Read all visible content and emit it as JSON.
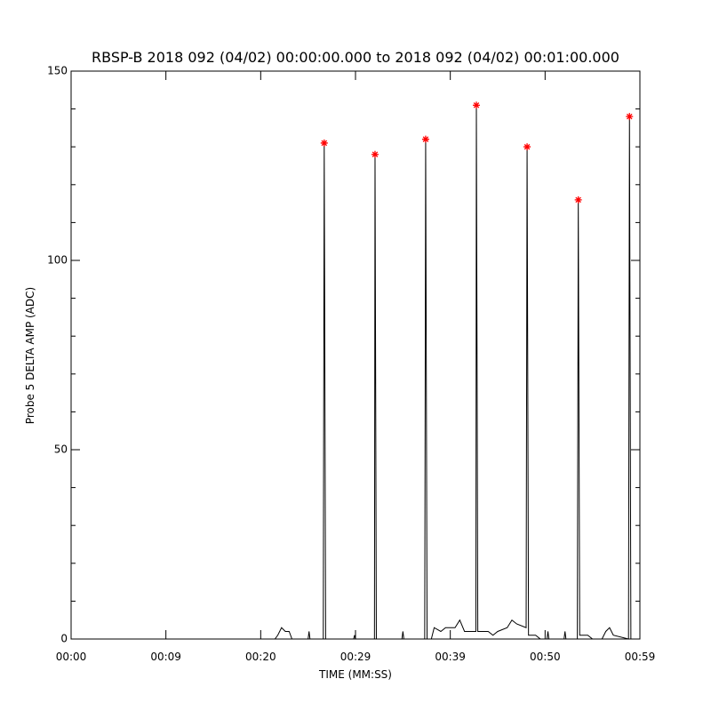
{
  "chart_data": {
    "type": "line",
    "title": "RBSP-B 2018 092 (04/02) 00:00:00.000 to 2018 092 (04/02) 00:01:00.000",
    "x_label": "TIME (MM:SS)",
    "y_label": "Probe 5 DELTA AMP (ADC)",
    "xlim": [
      0,
      60
    ],
    "ylim": [
      0,
      150
    ],
    "xticks": [
      {
        "value": 0,
        "label": "00:00"
      },
      {
        "value": 10,
        "label": "00:09"
      },
      {
        "value": 20,
        "label": "00:20"
      },
      {
        "value": 30,
        "label": "00:29"
      },
      {
        "value": 40,
        "label": "00:39"
      },
      {
        "value": 50,
        "label": "00:50"
      },
      {
        "value": 60,
        "label": "00:59"
      }
    ],
    "yticks": [
      0,
      50,
      100,
      150
    ],
    "yminorticks": [
      10,
      20,
      30,
      40,
      60,
      70,
      80,
      90,
      110,
      120,
      130,
      140
    ],
    "series": [
      {
        "color": "#000000",
        "x": [
          0,
          21.5,
          21.8,
          22.2,
          22.6,
          23,
          23.3,
          25,
          25.1,
          25.2,
          26.6,
          26.7,
          26.85,
          29.8,
          29.9,
          30,
          32,
          32.06,
          32.2,
          34.9,
          35,
          35.1,
          37.3,
          37.4,
          37.55,
          38,
          38.3,
          39,
          39.5,
          40.5,
          41,
          41.5,
          42.7,
          42.75,
          42.9,
          44,
          44.5,
          45,
          46,
          46.5,
          47,
          48,
          48.1,
          48.25,
          49,
          49.5,
          50.2,
          50.3,
          50.4,
          52,
          52.1,
          52.2,
          53.4,
          53.5,
          53.65,
          54.5,
          55,
          56,
          56.4,
          56.8,
          57.2,
          58.8,
          58.9,
          59.05,
          60
        ],
        "values": [
          0,
          0,
          1,
          3,
          2,
          2,
          0,
          0,
          2,
          0,
          0,
          131,
          0,
          0,
          1,
          0,
          0,
          128,
          0,
          0,
          2,
          0,
          0,
          132,
          0,
          0,
          3,
          2,
          3,
          3,
          5,
          2,
          2,
          141,
          2,
          2,
          1,
          2,
          3,
          5,
          4,
          3,
          130,
          1,
          1,
          0,
          0,
          2,
          0,
          0,
          2,
          0,
          0,
          116,
          1,
          1,
          0,
          0,
          2,
          3,
          1,
          0,
          138,
          0,
          0
        ]
      },
      {
        "color": "#ff0000",
        "marker": "asterisk",
        "x": [
          26.7,
          32.06,
          37.4,
          42.75,
          48.1,
          53.5,
          58.9
        ],
        "values": [
          131,
          128,
          132,
          141,
          130,
          116,
          138
        ]
      }
    ]
  }
}
